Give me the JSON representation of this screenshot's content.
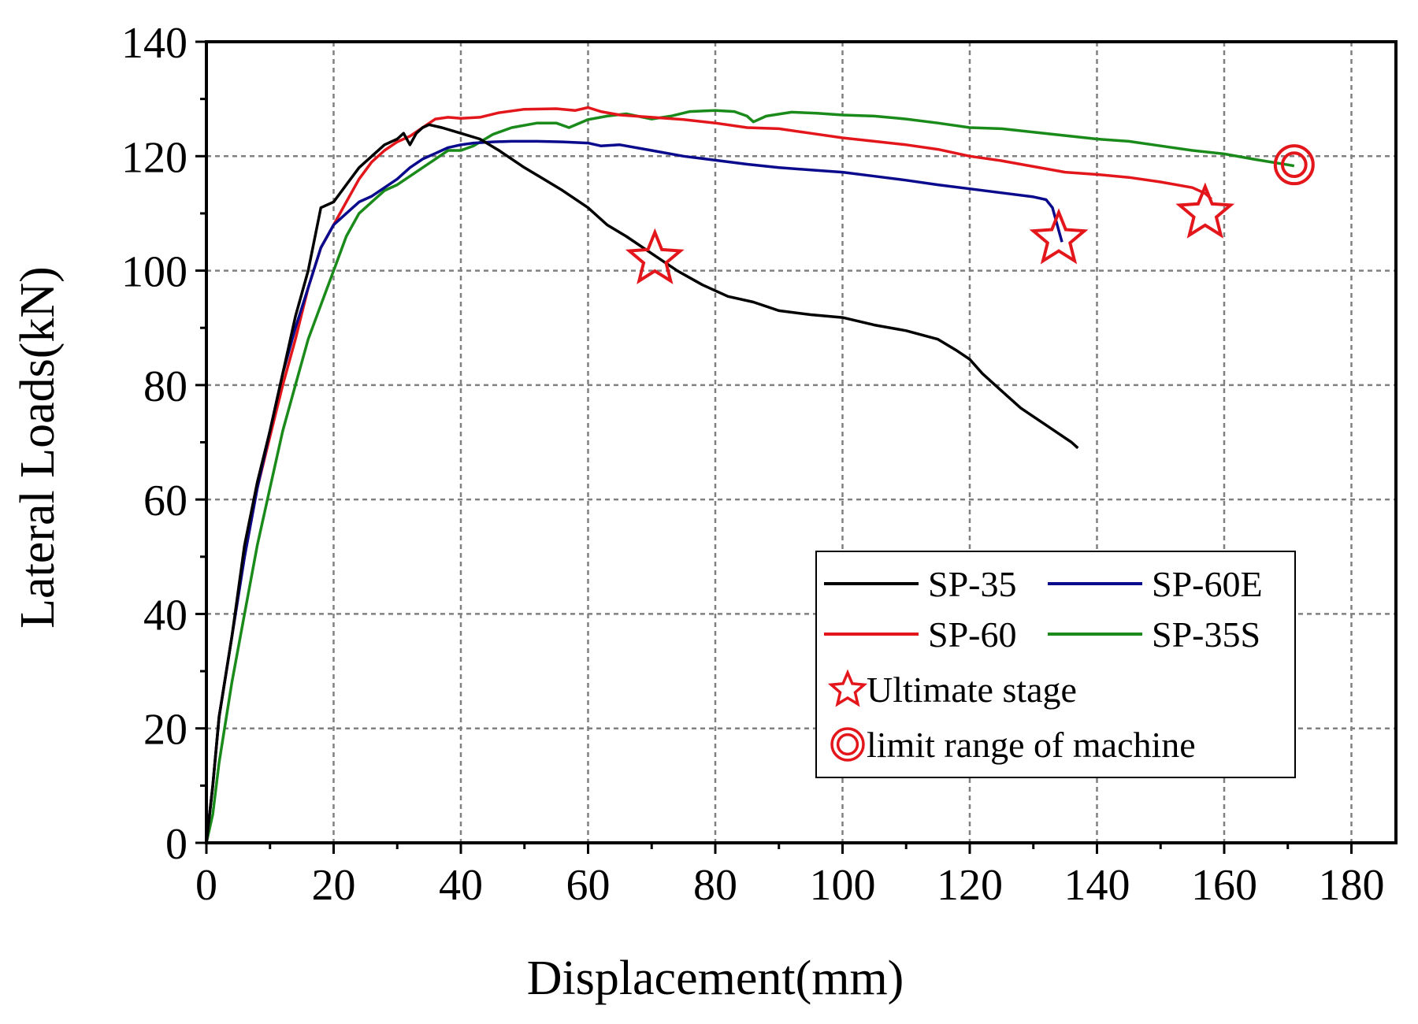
{
  "chart_data": {
    "type": "line",
    "title": "",
    "xlabel": "Displacement(mm)",
    "ylabel": "Lateral Loads(kN)",
    "xlim": [
      0,
      187
    ],
    "ylim": [
      0,
      140
    ],
    "xticks": [
      0,
      20,
      40,
      60,
      80,
      100,
      120,
      140,
      160,
      180
    ],
    "yticks": [
      0,
      20,
      40,
      60,
      80,
      100,
      120,
      140
    ],
    "grid": true,
    "legend_position": "bottom-right",
    "colors": {
      "SP-35": "#000000",
      "SP-60E": "#0a0a8c",
      "SP-60": "#e3161b",
      "SP-35S": "#1a8a1a",
      "marker": "#e3161b"
    },
    "series": [
      {
        "name": "SP-35",
        "color": "#000000",
        "points": [
          [
            0,
            0
          ],
          [
            1,
            10
          ],
          [
            2,
            22
          ],
          [
            4,
            36
          ],
          [
            6,
            52
          ],
          [
            8,
            63
          ],
          [
            10,
            72
          ],
          [
            12,
            82
          ],
          [
            14,
            92
          ],
          [
            16,
            100
          ],
          [
            18,
            111
          ],
          [
            20,
            112
          ],
          [
            22,
            115
          ],
          [
            24,
            118
          ],
          [
            26,
            120
          ],
          [
            28,
            122
          ],
          [
            30,
            123
          ],
          [
            31,
            124
          ],
          [
            32,
            122
          ],
          [
            33,
            124
          ],
          [
            34,
            125
          ],
          [
            35,
            125.5
          ],
          [
            37,
            125
          ],
          [
            40,
            124
          ],
          [
            43,
            123
          ],
          [
            46,
            121
          ],
          [
            50,
            118
          ],
          [
            53,
            116
          ],
          [
            56,
            114
          ],
          [
            60,
            111
          ],
          [
            63,
            108
          ],
          [
            66,
            106
          ],
          [
            70,
            103
          ],
          [
            74,
            100
          ],
          [
            78,
            97.5
          ],
          [
            82,
            95.5
          ],
          [
            86,
            94.5
          ],
          [
            90,
            93
          ],
          [
            95,
            92.3
          ],
          [
            100,
            91.8
          ],
          [
            105,
            90.5
          ],
          [
            110,
            89.5
          ],
          [
            115,
            88
          ],
          [
            118,
            86
          ],
          [
            120,
            84.5
          ],
          [
            122,
            82
          ],
          [
            124,
            80
          ],
          [
            126,
            78
          ],
          [
            128,
            76
          ],
          [
            130,
            74.5
          ],
          [
            132,
            73
          ],
          [
            134,
            71.5
          ],
          [
            136,
            70
          ],
          [
            137,
            69
          ]
        ]
      },
      {
        "name": "SP-60E",
        "color": "#0a0a8c",
        "points": [
          [
            0,
            0
          ],
          [
            1,
            10
          ],
          [
            2,
            22
          ],
          [
            4,
            36
          ],
          [
            6,
            50
          ],
          [
            8,
            62
          ],
          [
            10,
            72
          ],
          [
            12,
            82
          ],
          [
            14,
            90
          ],
          [
            16,
            97
          ],
          [
            18,
            104
          ],
          [
            20,
            108
          ],
          [
            22,
            110
          ],
          [
            24,
            112
          ],
          [
            26,
            113
          ],
          [
            28,
            114.5
          ],
          [
            30,
            116
          ],
          [
            32,
            118
          ],
          [
            34,
            119.5
          ],
          [
            36,
            120.5
          ],
          [
            38,
            121.5
          ],
          [
            40,
            122
          ],
          [
            42,
            122.3
          ],
          [
            45,
            122.5
          ],
          [
            48,
            122.6
          ],
          [
            52,
            122.6
          ],
          [
            56,
            122.5
          ],
          [
            60,
            122.3
          ],
          [
            62,
            121.8
          ],
          [
            65,
            122
          ],
          [
            70,
            121
          ],
          [
            75,
            120
          ],
          [
            80,
            119.3
          ],
          [
            85,
            118.6
          ],
          [
            90,
            118
          ],
          [
            95,
            117.6
          ],
          [
            100,
            117.2
          ],
          [
            105,
            116.5
          ],
          [
            110,
            115.8
          ],
          [
            115,
            115
          ],
          [
            120,
            114.3
          ],
          [
            125,
            113.6
          ],
          [
            130,
            112.9
          ],
          [
            132,
            112.4
          ],
          [
            133,
            111
          ],
          [
            134,
            107
          ],
          [
            134.5,
            105
          ]
        ]
      },
      {
        "name": "SP-60",
        "color": "#e3161b",
        "points": [
          [
            0,
            0
          ],
          [
            1,
            10
          ],
          [
            2,
            22
          ],
          [
            4,
            36
          ],
          [
            6,
            50
          ],
          [
            8,
            62
          ],
          [
            10,
            71
          ],
          [
            12,
            80
          ],
          [
            14,
            88
          ],
          [
            16,
            97
          ],
          [
            18,
            104
          ],
          [
            20,
            108
          ],
          [
            22,
            112
          ],
          [
            24,
            116
          ],
          [
            26,
            119
          ],
          [
            28,
            121
          ],
          [
            30,
            122.5
          ],
          [
            32,
            123.5
          ],
          [
            34,
            125
          ],
          [
            36,
            126.5
          ],
          [
            38,
            126.8
          ],
          [
            40,
            126.6
          ],
          [
            43,
            126.8
          ],
          [
            46,
            127.6
          ],
          [
            50,
            128.2
          ],
          [
            55,
            128.3
          ],
          [
            58,
            128
          ],
          [
            60,
            128.5
          ],
          [
            62,
            127.8
          ],
          [
            65,
            127.2
          ],
          [
            70,
            126.8
          ],
          [
            75,
            126.4
          ],
          [
            80,
            125.8
          ],
          [
            85,
            125
          ],
          [
            90,
            124.8
          ],
          [
            95,
            124
          ],
          [
            100,
            123.2
          ],
          [
            105,
            122.6
          ],
          [
            110,
            122
          ],
          [
            115,
            121.2
          ],
          [
            120,
            120
          ],
          [
            125,
            119.2
          ],
          [
            130,
            118.2
          ],
          [
            135,
            117.2
          ],
          [
            140,
            116.8
          ],
          [
            145,
            116.3
          ],
          [
            150,
            115.5
          ],
          [
            155,
            114.5
          ],
          [
            157,
            113.5
          ],
          [
            158,
            112.5
          ]
        ]
      },
      {
        "name": "SP-35S",
        "color": "#1a8a1a",
        "points": [
          [
            0,
            0
          ],
          [
            1,
            5
          ],
          [
            2,
            14
          ],
          [
            4,
            28
          ],
          [
            6,
            40
          ],
          [
            8,
            52
          ],
          [
            10,
            62
          ],
          [
            12,
            72
          ],
          [
            14,
            80
          ],
          [
            16,
            88
          ],
          [
            18,
            94
          ],
          [
            20,
            100
          ],
          [
            22,
            106
          ],
          [
            24,
            110
          ],
          [
            26,
            112
          ],
          [
            28,
            114
          ],
          [
            30,
            115
          ],
          [
            32,
            116.5
          ],
          [
            34,
            118
          ],
          [
            36,
            119.5
          ],
          [
            38,
            121
          ],
          [
            40,
            121
          ],
          [
            42,
            121.8
          ],
          [
            45,
            123.8
          ],
          [
            48,
            125
          ],
          [
            52,
            125.8
          ],
          [
            55,
            125.8
          ],
          [
            57,
            125
          ],
          [
            60,
            126.4
          ],
          [
            63,
            127
          ],
          [
            66,
            127.4
          ],
          [
            70,
            126.5
          ],
          [
            73,
            127
          ],
          [
            76,
            127.8
          ],
          [
            80,
            128
          ],
          [
            83,
            127.8
          ],
          [
            85,
            127
          ],
          [
            86,
            126
          ],
          [
            88,
            127
          ],
          [
            92,
            127.7
          ],
          [
            96,
            127.5
          ],
          [
            100,
            127.2
          ],
          [
            105,
            127
          ],
          [
            110,
            126.5
          ],
          [
            115,
            125.8
          ],
          [
            120,
            125
          ],
          [
            125,
            124.8
          ],
          [
            130,
            124.2
          ],
          [
            135,
            123.6
          ],
          [
            140,
            123
          ],
          [
            145,
            122.6
          ],
          [
            150,
            121.8
          ],
          [
            155,
            121
          ],
          [
            160,
            120.4
          ],
          [
            165,
            119.4
          ],
          [
            170,
            118.5
          ],
          [
            171,
            118.3
          ]
        ]
      }
    ],
    "annotations": {
      "ultimate_stage": [
        [
          70.5,
          102
        ],
        [
          134,
          105.5
        ],
        [
          157,
          110
        ]
      ],
      "limit_range": [
        [
          171,
          118.5
        ]
      ]
    },
    "legend": [
      {
        "label": "SP-35",
        "kind": "line",
        "color": "#000000"
      },
      {
        "label": "SP-60E",
        "kind": "line",
        "color": "#0a0a8c"
      },
      {
        "label": "SP-60",
        "kind": "line",
        "color": "#e3161b"
      },
      {
        "label": "SP-35S",
        "kind": "line",
        "color": "#1a8a1a"
      },
      {
        "label": "Ultimate stage",
        "kind": "star",
        "color": "#e3161b"
      },
      {
        "label": "limit range of machine",
        "kind": "circle",
        "color": "#e3161b"
      }
    ]
  }
}
